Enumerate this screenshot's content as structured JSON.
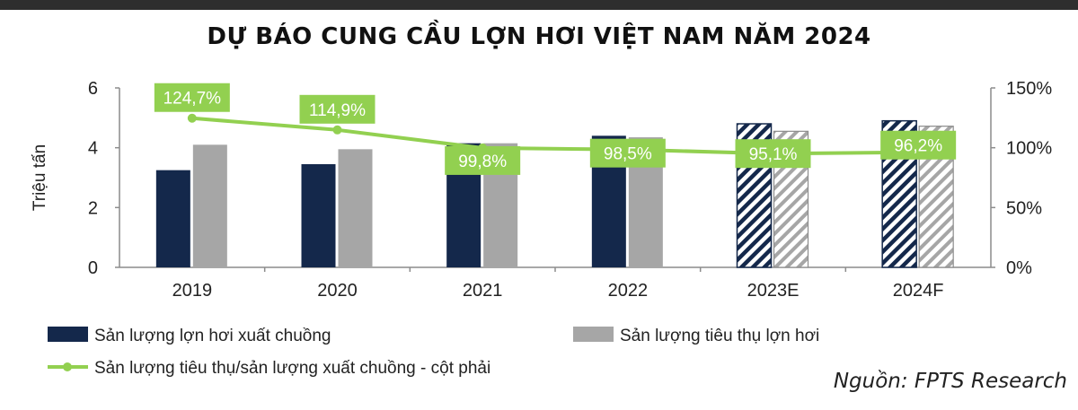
{
  "title": "DỰ BÁO CUNG CẦU LỢN HƠI VIỆT NAM NĂM 2024",
  "source": "Nguồn: FPTS Research",
  "colors": {
    "supply": "#14284b",
    "consumption": "#a6a6a6",
    "ratio_line": "#92d050",
    "ratio_label_text": "#ffffff",
    "topbar": "#2e2e2e"
  },
  "chart_data": {
    "type": "bar",
    "categories": [
      "2019",
      "2020",
      "2021",
      "2022",
      "2023E",
      "2024F"
    ],
    "ylabel": "Triệu tấn",
    "ylim": [
      0,
      6
    ],
    "yticks": [
      "0",
      "2",
      "4",
      "6"
    ],
    "y2lim": [
      0,
      150
    ],
    "y2ticks": [
      "0%",
      "50%",
      "100%",
      "150%"
    ],
    "forecast_categories": [
      "2023E",
      "2024F"
    ],
    "grid": false,
    "legend_position": "bottom",
    "series": [
      {
        "name": "Sản lượng lợn hơi xuất chuồng",
        "type": "bar",
        "axis": "left",
        "values": [
          3.25,
          3.45,
          4.15,
          4.4,
          4.8,
          4.9
        ]
      },
      {
        "name": "Sản lượng tiêu thụ lợn hơi",
        "type": "bar",
        "axis": "left",
        "values": [
          4.1,
          3.95,
          4.15,
          4.35,
          4.55,
          4.72
        ]
      },
      {
        "name": "Sản lượng tiêu thụ/sản lượng xuất chuồng - cột phải",
        "type": "line",
        "axis": "right",
        "values": [
          124.7,
          114.9,
          99.8,
          98.5,
          95.1,
          96.2
        ],
        "labels": [
          "124,7%",
          "114,9%",
          "99,8%",
          "98,5%",
          "95,1%",
          "96,2%"
        ]
      }
    ]
  }
}
